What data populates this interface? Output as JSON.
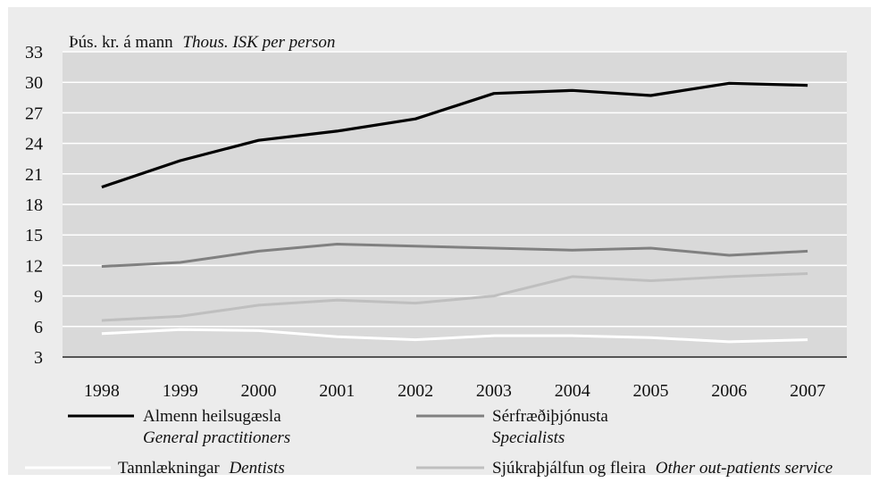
{
  "chart_data": {
    "type": "line",
    "unit_label": {
      "text": "Þús. kr. á mann",
      "italic": "Thous. ISK per person"
    },
    "x": [
      "1998",
      "1999",
      "2000",
      "2001",
      "2002",
      "2003",
      "2004",
      "2005",
      "2006",
      "2007"
    ],
    "ylim": [
      3,
      33
    ],
    "yticks": [
      3,
      6,
      9,
      12,
      15,
      18,
      21,
      24,
      27,
      30,
      33
    ],
    "grid": true,
    "plot_background": "#d9d9d9",
    "series": [
      {
        "name": "Almenn heilsugæsla",
        "name_en": "General practitioners",
        "color": "#000000",
        "values": [
          19.7,
          22.3,
          24.3,
          25.2,
          26.4,
          28.9,
          29.2,
          28.7,
          29.9,
          29.7
        ]
      },
      {
        "name": "Sérfræðiþjónusta",
        "name_en": "Specialists",
        "color": "#808080",
        "values": [
          11.9,
          12.3,
          13.4,
          14.1,
          13.9,
          13.7,
          13.5,
          13.7,
          13.0,
          13.4
        ]
      },
      {
        "name": "Tannlækningar",
        "name_en": "Dentists",
        "color": "#ffffff",
        "values": [
          5.3,
          5.7,
          5.6,
          5.0,
          4.7,
          5.1,
          5.1,
          4.9,
          4.5,
          4.7
        ]
      },
      {
        "name": "Sjúkraþjálfun og fleira",
        "name_en": "Other out-patients service",
        "color": "#bfbfbf",
        "values": [
          6.6,
          7.0,
          8.1,
          8.6,
          8.3,
          9.0,
          10.9,
          10.5,
          10.9,
          11.2
        ]
      }
    ]
  }
}
